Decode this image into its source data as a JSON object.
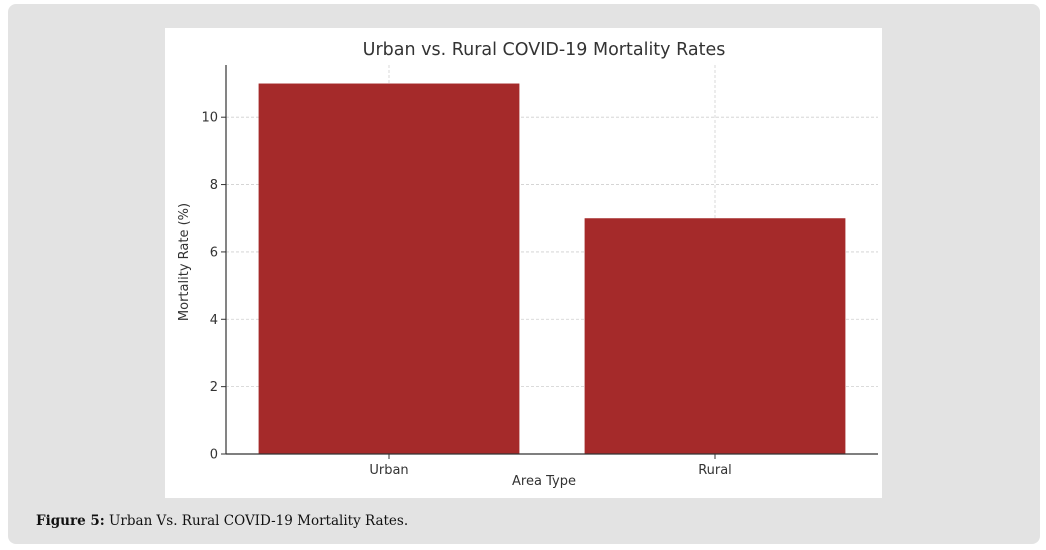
{
  "chart_data": {
    "type": "bar",
    "title": "Urban vs. Rural COVID-19 Mortality Rates",
    "xlabel": "Area Type",
    "ylabel": "Mortality Rate (%)",
    "categories": [
      "Urban",
      "Rural"
    ],
    "values": [
      11,
      7
    ],
    "ylim": [
      0,
      11.55
    ],
    "yticks": [
      0,
      2,
      4,
      6,
      8,
      10
    ],
    "grid": true,
    "bar_color": "#a52a2a"
  },
  "caption": {
    "label": "Figure 5:",
    "text": " Urban Vs. Rural COVID-19 Mortality Rates."
  }
}
